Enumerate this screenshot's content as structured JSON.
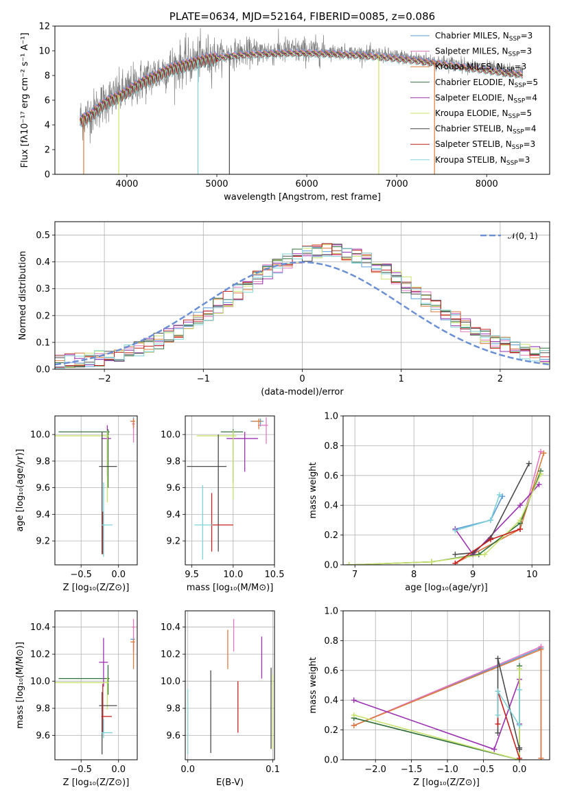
{
  "chart_data": [
    {
      "id": "spectrum",
      "type": "line",
      "title": "PLATE=0634, MJD=52164, FIBERID=0085, z=0.086",
      "xlabel": "wavelength [Angstrom, rest frame]",
      "ylabel": "Flux [fλ10⁻¹⁷ erg cm⁻² s⁻¹ A⁻¹]",
      "xlim": [
        3200,
        8700
      ],
      "ylim": [
        0,
        12
      ],
      "xticks": [
        4000,
        5000,
        6000,
        7000,
        8000
      ],
      "yticks": [
        0,
        2,
        4,
        6,
        8,
        10,
        12
      ],
      "legend_position": "top-right",
      "observed_color": "#7f7f7f",
      "continuum": {
        "x": [
          3480,
          3600,
          3700,
          3800,
          3900,
          4000,
          4100,
          4200,
          4300,
          4400,
          4500,
          4600,
          4700,
          4800,
          4900,
          5000,
          5200,
          5400,
          5600,
          5800,
          6000,
          6200,
          6400,
          6600,
          6800,
          7000,
          7200,
          7400,
          7600,
          7800,
          8000,
          8200,
          8400
        ],
        "y": [
          4.5,
          4.9,
          5.6,
          6.1,
          6.4,
          6.8,
          7.3,
          7.7,
          8.0,
          8.4,
          8.7,
          8.9,
          9.1,
          9.3,
          9.5,
          9.6,
          9.8,
          9.9,
          9.95,
          10.0,
          10.0,
          9.95,
          9.9,
          9.8,
          9.7,
          9.55,
          9.4,
          9.2,
          9.0,
          8.8,
          8.6,
          8.4,
          8.25
        ]
      },
      "series": [
        {
          "name": "Chabrier MILES, N_SSP=3",
          "color": "#5b9bd5"
        },
        {
          "name": "Salpeter MILES, N_SSP=3",
          "color": "#e377c2"
        },
        {
          "name": "Kroupa MILES, N_SSP=3",
          "color": "#dd7b3a"
        },
        {
          "name": "Chabrier ELODIE, N_SSP=5",
          "color": "#2f6f3a"
        },
        {
          "name": "Salpeter ELODIE, N_SSP=4",
          "color": "#9b30b0"
        },
        {
          "name": "Kroupa ELODIE, N_SSP=5",
          "color": "#c8e36a"
        },
        {
          "name": "Chabrier STELIB, N_SSP=4",
          "color": "#4a4a4a"
        },
        {
          "name": "Salpeter STELIB, N_SSP=3",
          "color": "#c8201e"
        },
        {
          "name": "Kroupa STELIB, N_SSP=3",
          "color": "#7fd3d8"
        }
      ],
      "dropouts": [
        {
          "x": 3520,
          "color": "#dd7b3a"
        },
        {
          "x": 3910,
          "color": "#c8e36a"
        },
        {
          "x": 4790,
          "color": "#7fd3d8"
        },
        {
          "x": 5140,
          "color": "#4a4a4a"
        },
        {
          "x": 6800,
          "color": "#c8e36a"
        },
        {
          "x": 7420,
          "color": "#dd7b3a"
        }
      ]
    },
    {
      "id": "residuals",
      "type": "histogram",
      "xlabel": "(data-model)/error",
      "ylabel": "Normed distribution",
      "xlim": [
        -2.5,
        2.5
      ],
      "ylim": [
        0,
        0.55
      ],
      "xticks": [
        -2,
        -1,
        0,
        1,
        2
      ],
      "yticks": [
        0.0,
        0.1,
        0.2,
        0.3,
        0.4,
        0.5
      ],
      "legend": "𝒩(0, 1)",
      "legend_position": "top-right",
      "normal_color": "#6a8fd4",
      "bins": 50,
      "series_colors": [
        "#5b9bd5",
        "#e377c2",
        "#dd7b3a",
        "#2f6f3a",
        "#9b30b0",
        "#c8e36a",
        "#4a4a4a",
        "#c8201e",
        "#7fd3d8"
      ]
    },
    {
      "id": "age-vs-Z",
      "type": "errorbar",
      "xlabel": "Z [log₁₀(Z/Z⊙)]",
      "ylabel": "age  [log₁₀(age/yr)]",
      "xlim": [
        -0.85,
        0.25
      ],
      "ylim": [
        9.02,
        10.14
      ],
      "xticks": [
        -0.5,
        0.0
      ],
      "yticks": [
        9.2,
        9.4,
        9.6,
        9.8,
        10.0
      ],
      "points": [
        {
          "x": 0.2,
          "y": 10.1,
          "xerr": [
            0.04,
            0.02
          ],
          "yerr": [
            0.06,
            0.03
          ],
          "color": "#5b9bd5"
        },
        {
          "x": 0.2,
          "y": 10.08,
          "xerr": [
            0.02,
            0.02
          ],
          "yerr": [
            0.14,
            0.04
          ],
          "color": "#e377c2"
        },
        {
          "x": 0.2,
          "y": 10.1,
          "xerr": [
            0.04,
            0.02
          ],
          "yerr": [
            0.05,
            0.02
          ],
          "color": "#dd7b3a"
        },
        {
          "x": -0.14,
          "y": 10.02,
          "xerr": [
            0.66,
            0.02
          ],
          "yerr": [
            0.42,
            0.02
          ],
          "color": "#2f6f3a"
        },
        {
          "x": -0.15,
          "y": 9.97,
          "xerr": [
            0.08,
            0.05
          ],
          "yerr": [
            0.28,
            0.1
          ],
          "color": "#9b30b0"
        },
        {
          "x": -0.15,
          "y": 9.99,
          "xerr": [
            0.7,
            0.02
          ],
          "yerr": [
            0.5,
            0.04
          ],
          "color": "#c8e36a"
        },
        {
          "x": -0.22,
          "y": 9.76,
          "xerr": [
            0.04,
            0.2
          ],
          "yerr": [
            0.66,
            0.26
          ],
          "color": "#4a4a4a"
        },
        {
          "x": -0.21,
          "y": 9.32,
          "xerr": [
            0.02,
            0.02
          ],
          "yerr": [
            0.22,
            0.1
          ],
          "color": "#c8201e"
        },
        {
          "x": -0.2,
          "y": 9.32,
          "xerr": [
            0.03,
            0.12
          ],
          "yerr": [
            0.24,
            0.32
          ],
          "color": "#7fd3d8"
        }
      ]
    },
    {
      "id": "age-vs-mass",
      "type": "errorbar",
      "xlabel": "mass [log₁₀(M/M⊙)]",
      "ylabel": "",
      "xlim": [
        9.42,
        10.5
      ],
      "ylim": [
        9.02,
        10.14
      ],
      "xticks": [
        9.5,
        10.0,
        10.5
      ],
      "yticks": [
        9.2,
        9.4,
        9.6,
        9.8,
        10.0
      ],
      "points": [
        {
          "x": 10.33,
          "y": 10.1,
          "xerr": [
            0.12,
            0.04
          ],
          "yerr": [
            0.04,
            0.02
          ],
          "color": "#5b9bd5"
        },
        {
          "x": 10.4,
          "y": 10.07,
          "xerr": [
            0.1,
            0.02
          ],
          "yerr": [
            0.14,
            0.06
          ],
          "color": "#e377c2"
        },
        {
          "x": 10.31,
          "y": 10.1,
          "xerr": [
            0.08,
            0.04
          ],
          "yerr": [
            0.06,
            0.02
          ],
          "color": "#dd7b3a"
        },
        {
          "x": 10.0,
          "y": 10.02,
          "xerr": [
            0.15,
            0.12
          ],
          "yerr": [
            0.38,
            0.02
          ],
          "color": "#2f6f3a"
        },
        {
          "x": 10.14,
          "y": 9.97,
          "xerr": [
            0.22,
            0.16
          ],
          "yerr": [
            0.25,
            0.05
          ],
          "color": "#9b30b0"
        },
        {
          "x": 10.0,
          "y": 9.99,
          "xerr": [
            0.44,
            0.04
          ],
          "yerr": [
            0.48,
            0.04
          ],
          "color": "#c8e36a"
        },
        {
          "x": 9.82,
          "y": 9.76,
          "xerr": [
            0.38,
            0.1
          ],
          "yerr": [
            0.64,
            0.24
          ],
          "color": "#4a4a4a"
        },
        {
          "x": 9.74,
          "y": 9.32,
          "xerr": [
            0.02,
            0.26
          ],
          "yerr": [
            0.2,
            0.24
          ],
          "color": "#c8201e"
        },
        {
          "x": 9.63,
          "y": 9.32,
          "xerr": [
            0.1,
            0.12
          ],
          "yerr": [
            0.26,
            0.3
          ],
          "color": "#7fd3d8"
        }
      ]
    },
    {
      "id": "mass-weight-vs-age",
      "type": "line",
      "xlabel": "age  [log₁₀(age/yr)]",
      "ylabel": "mass weight",
      "xlim": [
        6.8,
        10.3
      ],
      "ylim": [
        0,
        1.0
      ],
      "xticks": [
        7,
        8,
        9,
        10
      ],
      "yticks": [
        0.0,
        0.2,
        0.4,
        0.6,
        0.8,
        1.0
      ],
      "series": [
        {
          "color": "#5b9bd5",
          "x": [
            8.7,
            9.3,
            9.5
          ],
          "y": [
            0.24,
            0.3,
            0.46
          ]
        },
        {
          "color": "#e377c2",
          "x": [
            8.7,
            9.8,
            10.15
          ],
          "y": [
            0.01,
            0.24,
            0.76
          ]
        },
        {
          "color": "#dd7b3a",
          "x": [
            8.7,
            9.8,
            10.2
          ],
          "y": [
            0.01,
            0.24,
            0.75
          ]
        },
        {
          "color": "#2f6f3a",
          "x": [
            6.9,
            8.3,
            9.1,
            9.8,
            10.15
          ],
          "y": [
            0.0,
            0.02,
            0.07,
            0.28,
            0.63
          ]
        },
        {
          "color": "#9b30b0",
          "x": [
            8.7,
            9.0,
            9.8,
            10.12
          ],
          "y": [
            0.24,
            0.07,
            0.4,
            0.54
          ]
        },
        {
          "color": "#c8e36a",
          "x": [
            6.9,
            8.3,
            9.2,
            9.8,
            10.15
          ],
          "y": [
            0.0,
            0.02,
            0.07,
            0.3,
            0.61
          ]
        },
        {
          "color": "#4a4a4a",
          "x": [
            8.7,
            9.0,
            9.3,
            9.95
          ],
          "y": [
            0.07,
            0.08,
            0.18,
            0.68
          ]
        },
        {
          "color": "#c8201e",
          "x": [
            8.7,
            9.3,
            9.8
          ],
          "y": [
            0.01,
            0.17,
            0.24
          ]
        },
        {
          "color": "#7fd3d8",
          "x": [
            8.7,
            9.3,
            9.45
          ],
          "y": [
            0.23,
            0.3,
            0.47
          ]
        }
      ]
    },
    {
      "id": "mass-vs-Z",
      "type": "errorbar",
      "xlabel": "Z [log₁₀(Z/Z⊙)]",
      "ylabel": "mass [log₁₀(M/M⊙)]",
      "xlim": [
        -0.85,
        0.25
      ],
      "ylim": [
        9.42,
        10.52
      ],
      "xticks": [
        -0.5,
        0.0
      ],
      "yticks": [
        9.6,
        9.8,
        10.0,
        10.2,
        10.4
      ],
      "points": [
        {
          "x": 0.2,
          "y": 10.31,
          "xerr": [
            0.04,
            0.02
          ],
          "yerr": [
            0.1,
            0.02
          ],
          "color": "#5b9bd5"
        },
        {
          "x": 0.2,
          "y": 10.4,
          "xerr": [
            0.02,
            0.02
          ],
          "yerr": [
            0.18,
            0.06
          ],
          "color": "#e377c2"
        },
        {
          "x": 0.2,
          "y": 10.29,
          "xerr": [
            0.04,
            0.02
          ],
          "yerr": [
            0.2,
            0.02
          ],
          "color": "#dd7b3a"
        },
        {
          "x": -0.14,
          "y": 10.02,
          "xerr": [
            0.66,
            0.02
          ],
          "yerr": [
            0.12,
            0.1
          ],
          "color": "#2f6f3a"
        },
        {
          "x": -0.2,
          "y": 10.14,
          "xerr": [
            0.06,
            0.06
          ],
          "yerr": [
            0.18,
            0.18
          ],
          "color": "#9b30b0"
        },
        {
          "x": -0.15,
          "y": 9.99,
          "xerr": [
            0.7,
            0.02
          ],
          "yerr": [
            0.2,
            0.04
          ],
          "color": "#c8e36a"
        },
        {
          "x": -0.22,
          "y": 9.82,
          "xerr": [
            0.04,
            0.2
          ],
          "yerr": [
            0.36,
            0.1
          ],
          "color": "#4a4a4a"
        },
        {
          "x": -0.21,
          "y": 9.74,
          "xerr": [
            0.02,
            0.12
          ],
          "yerr": [
            0.12,
            0.24
          ],
          "color": "#c8201e"
        },
        {
          "x": -0.2,
          "y": 9.62,
          "xerr": [
            0.03,
            0.12
          ],
          "yerr": [
            0.04,
            0.1
          ],
          "color": "#7fd3d8"
        }
      ]
    },
    {
      "id": "mass-vs-EBV",
      "type": "errorbar",
      "xlabel": "E(B-V)",
      "ylabel": "",
      "xlim": [
        -0.003,
        0.102
      ],
      "ylim": [
        9.42,
        10.52
      ],
      "xticks": [
        0.0,
        0.1
      ],
      "yticks": [
        9.6,
        9.8,
        10.0,
        10.2,
        10.4
      ],
      "points": [
        {
          "x": 0.0,
          "y": 9.9,
          "xerr": [
            0,
            0
          ],
          "yerr": [
            0.44,
            0.04
          ],
          "color": "#7fd3d8"
        },
        {
          "x": 0.027,
          "y": 9.85,
          "xerr": [
            0,
            0
          ],
          "yerr": [
            0.38,
            0.23
          ],
          "color": "#4a4a4a"
        },
        {
          "x": 0.047,
          "y": 10.29,
          "xerr": [
            0,
            0
          ],
          "yerr": [
            0.2,
            0.09
          ],
          "color": "#dd7b3a"
        },
        {
          "x": 0.054,
          "y": 10.38,
          "xerr": [
            0,
            0
          ],
          "yerr": [
            0.16,
            0.08
          ],
          "color": "#e377c2"
        },
        {
          "x": 0.059,
          "y": 9.81,
          "xerr": [
            0,
            0
          ],
          "yerr": [
            0.19,
            0.19
          ],
          "color": "#c8201e"
        },
        {
          "x": 0.087,
          "y": 10.18,
          "xerr": [
            0,
            0
          ],
          "yerr": [
            0.16,
            0.15
          ],
          "color": "#9b30b0"
        },
        {
          "x": 0.098,
          "y": 9.85,
          "xerr": [
            0,
            0
          ],
          "yerr": [
            0.35,
            0.25
          ],
          "color": "#4a4a4a"
        },
        {
          "x": 0.1,
          "y": 9.8,
          "xerr": [
            0,
            0
          ],
          "yerr": [
            0.3,
            0.25
          ],
          "color": "#c8e36a"
        }
      ]
    },
    {
      "id": "mass-weight-vs-Z",
      "type": "line",
      "xlabel": "Z [log₁₀(Z/Z⊙)]",
      "ylabel": "mass weight",
      "xlim": [
        -2.45,
        0.42
      ],
      "ylim": [
        0,
        1.0
      ],
      "xticks": [
        -2.0,
        -1.5,
        -1.0,
        -0.5,
        0.0
      ],
      "yticks": [
        0.0,
        0.2,
        0.4,
        0.6,
        0.8,
        1.0
      ],
      "series": [
        {
          "color": "#5b9bd5",
          "x": [
            -2.3,
            0.3,
            0.3
          ],
          "y": [
            0.23,
            0.75,
            0.01
          ]
        },
        {
          "color": "#e377c2",
          "x": [
            -2.3,
            0.3,
            0.3
          ],
          "y": [
            0.23,
            0.76,
            0.01
          ]
        },
        {
          "color": "#dd7b3a",
          "x": [
            -2.3,
            0.3,
            0.3
          ],
          "y": [
            0.23,
            0.74,
            0.01
          ]
        },
        {
          "color": "#2f6f3a",
          "x": [
            -2.3,
            0.0,
            0.0
          ],
          "y": [
            0.28,
            0.0,
            0.63
          ]
        },
        {
          "color": "#9b30b0",
          "x": [
            -2.3,
            -0.35,
            0.0,
            0.0
          ],
          "y": [
            0.4,
            0.07,
            0.54,
            0.24
          ]
        },
        {
          "color": "#c8e36a",
          "x": [
            -2.3,
            0.0,
            0.0
          ],
          "y": [
            0.3,
            0.0,
            0.61
          ]
        },
        {
          "color": "#4a4a4a",
          "x": [
            -0.3,
            -0.3,
            0.0,
            0.0
          ],
          "y": [
            0.18,
            0.68,
            0.07,
            0.08
          ]
        },
        {
          "color": "#c8201e",
          "x": [
            -0.3,
            -0.3,
            0.0
          ],
          "y": [
            0.24,
            0.46,
            0.01
          ]
        },
        {
          "color": "#7fd3d8",
          "x": [
            -0.3,
            -0.3,
            0.0,
            0.0
          ],
          "y": [
            0.3,
            0.46,
            0.23,
            0.47
          ]
        }
      ]
    }
  ]
}
